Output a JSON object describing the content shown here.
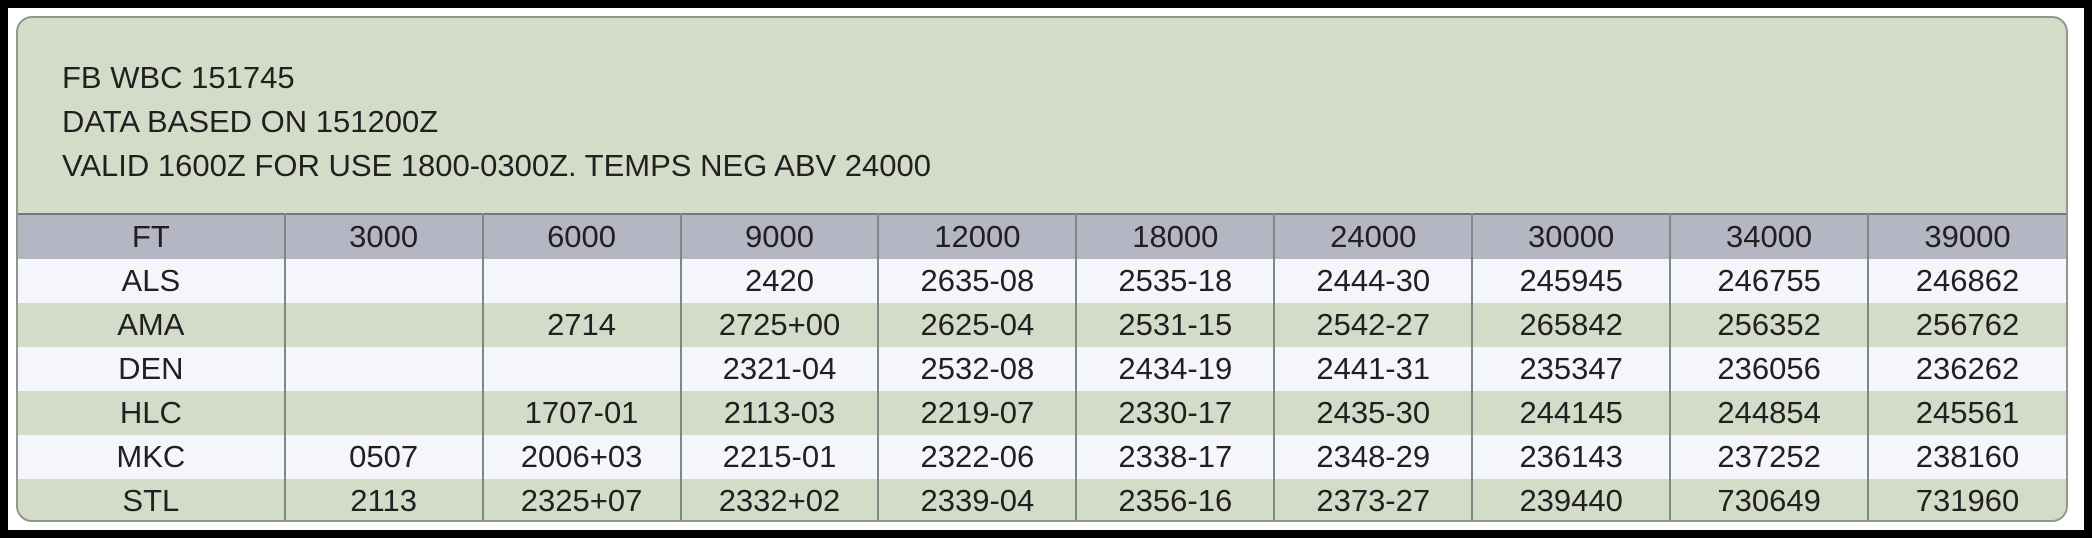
{
  "header": {
    "line1": "FB WBC 151745",
    "line2": "DATA BASED ON 151200Z",
    "line3": "VALID 1600Z FOR USE 1800-0300Z. TEMPS NEG ABV 24000"
  },
  "table": {
    "columns": [
      "FT",
      "3000",
      "6000",
      "9000",
      "12000",
      "18000",
      "24000",
      "30000",
      "34000",
      "39000"
    ],
    "rows": [
      [
        "ALS",
        "",
        "",
        "2420",
        "2635-08",
        "2535-18",
        "2444-30",
        "245945",
        "246755",
        "246862"
      ],
      [
        "AMA",
        "",
        "2714",
        "2725+00",
        "2625-04",
        "2531-15",
        "2542-27",
        "265842",
        "256352",
        "256762"
      ],
      [
        "DEN",
        "",
        "",
        "2321-04",
        "2532-08",
        "2434-19",
        "2441-31",
        "235347",
        "236056",
        "236262"
      ],
      [
        "HLC",
        "",
        "1707-01",
        "2113-03",
        "2219-07",
        "2330-17",
        "2435-30",
        "244145",
        "244854",
        "245561"
      ],
      [
        "MKC",
        "0507",
        "2006+03",
        "2215-01",
        "2322-06",
        "2338-17",
        "2348-29",
        "236143",
        "237252",
        "238160"
      ],
      [
        "STL",
        "2113",
        "2325+07",
        "2332+02",
        "2339-04",
        "2356-16",
        "2373-27",
        "239440",
        "730649",
        "731960"
      ]
    ]
  }
}
